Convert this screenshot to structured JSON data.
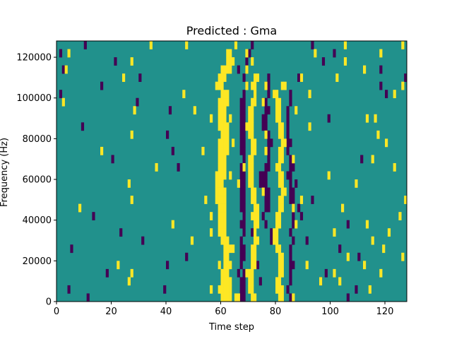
{
  "chart_data": {
    "type": "heatmap",
    "title": "Predicted : Gma",
    "xlabel": "Time step",
    "ylabel": "Frequency (Hz)",
    "xlim": [
      0,
      128
    ],
    "ylim": [
      0,
      128000
    ],
    "x_ticks": [
      0,
      20,
      40,
      60,
      80,
      100,
      120
    ],
    "y_ticks": [
      0,
      20000,
      40000,
      60000,
      80000,
      100000,
      120000
    ],
    "x_tick_labels": [
      "0",
      "20",
      "40",
      "60",
      "80",
      "100",
      "120"
    ],
    "y_tick_labels": [
      "0",
      "20000",
      "40000",
      "60000",
      "80000",
      "100000",
      "120000"
    ],
    "grid": false,
    "colormap": "viridis",
    "colors": {
      "low": "#440154",
      "mid": "#21918c",
      "high": "#fde725"
    },
    "background_value": 0,
    "n_time_steps": 128,
    "n_frequency_bins": 32,
    "hot_cells": [
      [
        60,
        0
      ],
      [
        61,
        0
      ],
      [
        62,
        0
      ],
      [
        63,
        0
      ],
      [
        65,
        0
      ],
      [
        66,
        0
      ],
      [
        71,
        0
      ],
      [
        72,
        0
      ],
      [
        81,
        0
      ],
      [
        82,
        0
      ],
      [
        86,
        0
      ],
      [
        59,
        1
      ],
      [
        60,
        1
      ],
      [
        61,
        1
      ],
      [
        62,
        1
      ],
      [
        63,
        1
      ],
      [
        70,
        1
      ],
      [
        71,
        1
      ],
      [
        80,
        1
      ],
      [
        81,
        1
      ],
      [
        82,
        1
      ],
      [
        56,
        1
      ],
      [
        114,
        1
      ],
      [
        60,
        2
      ],
      [
        61,
        2
      ],
      [
        62,
        2
      ],
      [
        63,
        2
      ],
      [
        70,
        2
      ],
      [
        71,
        2
      ],
      [
        80,
        2
      ],
      [
        81,
        2
      ],
      [
        26,
        2
      ],
      [
        96,
        2
      ],
      [
        103,
        2
      ],
      [
        60,
        3
      ],
      [
        61,
        3
      ],
      [
        62,
        3
      ],
      [
        70,
        3
      ],
      [
        71,
        3
      ],
      [
        81,
        3
      ],
      [
        82,
        3
      ],
      [
        27,
        3
      ],
      [
        69,
        3
      ],
      [
        101,
        3
      ],
      [
        118,
        3
      ],
      [
        61,
        4
      ],
      [
        62,
        4
      ],
      [
        63,
        4
      ],
      [
        71,
        4
      ],
      [
        72,
        4
      ],
      [
        81,
        4
      ],
      [
        82,
        4
      ],
      [
        22,
        4
      ],
      [
        59,
        4
      ],
      [
        91,
        4
      ],
      [
        112,
        4
      ],
      [
        61,
        5
      ],
      [
        62,
        5
      ],
      [
        71,
        5
      ],
      [
        72,
        5
      ],
      [
        81,
        5
      ],
      [
        82,
        5
      ],
      [
        106,
        5
      ],
      [
        126,
        5
      ],
      [
        61,
        6
      ],
      [
        62,
        6
      ],
      [
        63,
        6
      ],
      [
        71,
        6
      ],
      [
        72,
        6
      ],
      [
        80,
        6
      ],
      [
        81,
        6
      ],
      [
        64,
        6
      ],
      [
        119,
        6
      ],
      [
        60,
        7
      ],
      [
        61,
        7
      ],
      [
        62,
        7
      ],
      [
        72,
        7
      ],
      [
        73,
        7
      ],
      [
        79,
        7
      ],
      [
        80,
        7
      ],
      [
        49,
        7
      ],
      [
        115,
        7
      ],
      [
        59,
        8
      ],
      [
        60,
        8
      ],
      [
        61,
        8
      ],
      [
        72,
        8
      ],
      [
        79,
        8
      ],
      [
        80,
        8
      ],
      [
        56,
        8
      ],
      [
        101,
        8
      ],
      [
        121,
        8
      ],
      [
        59,
        9
      ],
      [
        60,
        9
      ],
      [
        61,
        9
      ],
      [
        72,
        9
      ],
      [
        73,
        9
      ],
      [
        80,
        9
      ],
      [
        81,
        9
      ],
      [
        42,
        9
      ],
      [
        87,
        9
      ],
      [
        113,
        9
      ],
      [
        59,
        10
      ],
      [
        60,
        10
      ],
      [
        61,
        10
      ],
      [
        72,
        10
      ],
      [
        73,
        10
      ],
      [
        80,
        10
      ],
      [
        81,
        10
      ],
      [
        56,
        10
      ],
      [
        71,
        10
      ],
      [
        125,
        10
      ],
      [
        59,
        11
      ],
      [
        60,
        11
      ],
      [
        61,
        11
      ],
      [
        72,
        11
      ],
      [
        73,
        11
      ],
      [
        81,
        11
      ],
      [
        82,
        11
      ],
      [
        8,
        11
      ],
      [
        86,
        11
      ],
      [
        104,
        11
      ],
      [
        58,
        12
      ],
      [
        59,
        12
      ],
      [
        60,
        12
      ],
      [
        61,
        12
      ],
      [
        71,
        12
      ],
      [
        72,
        12
      ],
      [
        81,
        12
      ],
      [
        82,
        12
      ],
      [
        27,
        12
      ],
      [
        54,
        12
      ],
      [
        89,
        12
      ],
      [
        127,
        12
      ],
      [
        58,
        13
      ],
      [
        59,
        13
      ],
      [
        60,
        13
      ],
      [
        61,
        13
      ],
      [
        71,
        13
      ],
      [
        72,
        13
      ],
      [
        82,
        13
      ],
      [
        83,
        13
      ],
      [
        75,
        13
      ],
      [
        58,
        14
      ],
      [
        59,
        14
      ],
      [
        60,
        14
      ],
      [
        70,
        14
      ],
      [
        71,
        14
      ],
      [
        81,
        14
      ],
      [
        82,
        14
      ],
      [
        26,
        14
      ],
      [
        66,
        14
      ],
      [
        109,
        14
      ],
      [
        58,
        15
      ],
      [
        59,
        15
      ],
      [
        60,
        15
      ],
      [
        61,
        15
      ],
      [
        70,
        15
      ],
      [
        71,
        15
      ],
      [
        81,
        15
      ],
      [
        82,
        15
      ],
      [
        63,
        15
      ],
      [
        99,
        15
      ],
      [
        59,
        16
      ],
      [
        60,
        16
      ],
      [
        61,
        16
      ],
      [
        70,
        16
      ],
      [
        71,
        16
      ],
      [
        80,
        16
      ],
      [
        81,
        16
      ],
      [
        36,
        16
      ],
      [
        68,
        16
      ],
      [
        123,
        16
      ],
      [
        59,
        17
      ],
      [
        60,
        17
      ],
      [
        61,
        17
      ],
      [
        70,
        17
      ],
      [
        71,
        17
      ],
      [
        81,
        17
      ],
      [
        82,
        17
      ],
      [
        86,
        17
      ],
      [
        115,
        17
      ],
      [
        59,
        18
      ],
      [
        60,
        18
      ],
      [
        61,
        18
      ],
      [
        62,
        18
      ],
      [
        71,
        18
      ],
      [
        72,
        18
      ],
      [
        81,
        18
      ],
      [
        82,
        18
      ],
      [
        16,
        18
      ],
      [
        53,
        18
      ],
      [
        76,
        18
      ],
      [
        59,
        19
      ],
      [
        60,
        19
      ],
      [
        61,
        19
      ],
      [
        62,
        19
      ],
      [
        71,
        19
      ],
      [
        72,
        19
      ],
      [
        82,
        19
      ],
      [
        83,
        19
      ],
      [
        64,
        19
      ],
      [
        120,
        19
      ],
      [
        60,
        20
      ],
      [
        61,
        20
      ],
      [
        62,
        20
      ],
      [
        70,
        20
      ],
      [
        71,
        20
      ],
      [
        81,
        20
      ],
      [
        82,
        20
      ],
      [
        27,
        20
      ],
      [
        76,
        20
      ],
      [
        117,
        20
      ],
      [
        59,
        21
      ],
      [
        60,
        21
      ],
      [
        61,
        21
      ],
      [
        62,
        21
      ],
      [
        70,
        21
      ],
      [
        71,
        21
      ],
      [
        81,
        21
      ],
      [
        82,
        21
      ],
      [
        69,
        21
      ],
      [
        92,
        21
      ],
      [
        59,
        22
      ],
      [
        60,
        22
      ],
      [
        61,
        22
      ],
      [
        63,
        22
      ],
      [
        70,
        22
      ],
      [
        71,
        22
      ],
      [
        80,
        22
      ],
      [
        81,
        22
      ],
      [
        56,
        22
      ],
      [
        116,
        22
      ],
      [
        113,
        22
      ],
      [
        59,
        23
      ],
      [
        60,
        23
      ],
      [
        61,
        23
      ],
      [
        70,
        23
      ],
      [
        71,
        23
      ],
      [
        80,
        23
      ],
      [
        81,
        23
      ],
      [
        28,
        23
      ],
      [
        50,
        23
      ],
      [
        87,
        23
      ],
      [
        60,
        24
      ],
      [
        61,
        24
      ],
      [
        62,
        24
      ],
      [
        71,
        24
      ],
      [
        72,
        24
      ],
      [
        80,
        24
      ],
      [
        81,
        24
      ],
      [
        2,
        24
      ],
      [
        59,
        24
      ],
      [
        75,
        24
      ],
      [
        60,
        25
      ],
      [
        61,
        25
      ],
      [
        62,
        25
      ],
      [
        72,
        25
      ],
      [
        79,
        25
      ],
      [
        80,
        25
      ],
      [
        46,
        25
      ],
      [
        92,
        25
      ],
      [
        123,
        25
      ],
      [
        58,
        26
      ],
      [
        59,
        26
      ],
      [
        60,
        26
      ],
      [
        71,
        26
      ],
      [
        72,
        26
      ],
      [
        82,
        26
      ],
      [
        83,
        26
      ],
      [
        69,
        26
      ],
      [
        126,
        26
      ],
      [
        76,
        26
      ],
      [
        59,
        27
      ],
      [
        60,
        27
      ],
      [
        61,
        27
      ],
      [
        72,
        27
      ],
      [
        73,
        27
      ],
      [
        24,
        27
      ],
      [
        89,
        27
      ],
      [
        102,
        27
      ],
      [
        60,
        28
      ],
      [
        61,
        28
      ],
      [
        62,
        28
      ],
      [
        63,
        28
      ],
      [
        69,
        28
      ],
      [
        112,
        28
      ],
      [
        3,
        28
      ],
      [
        62,
        29
      ],
      [
        63,
        29
      ],
      [
        64,
        29
      ],
      [
        71,
        29
      ],
      [
        27,
        29
      ],
      [
        105,
        29
      ],
      [
        62,
        30
      ],
      [
        63,
        30
      ],
      [
        94,
        30
      ],
      [
        118,
        30
      ],
      [
        4,
        30
      ],
      [
        69,
        30
      ],
      [
        65,
        31
      ],
      [
        105,
        31
      ],
      [
        34,
        31
      ],
      [
        47,
        31
      ],
      [
        126,
        31
      ]
    ],
    "low_cells": [
      [
        67,
        0
      ],
      [
        68,
        0
      ],
      [
        85,
        0
      ],
      [
        11,
        0
      ],
      [
        106,
        0
      ],
      [
        67,
        1
      ],
      [
        68,
        1
      ],
      [
        84,
        1
      ],
      [
        39,
        1
      ],
      [
        109,
        1
      ],
      [
        4,
        1
      ],
      [
        67,
        2
      ],
      [
        85,
        2
      ],
      [
        68,
        2
      ],
      [
        74,
        2
      ],
      [
        96,
        2
      ],
      [
        68,
        3
      ],
      [
        85,
        3
      ],
      [
        66,
        3
      ],
      [
        18,
        3
      ],
      [
        98,
        3
      ],
      [
        67,
        4
      ],
      [
        85,
        4
      ],
      [
        86,
        4
      ],
      [
        73,
        4
      ],
      [
        40,
        4
      ],
      [
        68,
        5
      ],
      [
        85,
        5
      ],
      [
        67,
        5
      ],
      [
        47,
        5
      ],
      [
        110,
        5
      ],
      [
        67,
        6
      ],
      [
        68,
        6
      ],
      [
        85,
        6
      ],
      [
        5,
        6
      ],
      [
        103,
        6
      ],
      [
        67,
        7
      ],
      [
        78,
        7
      ],
      [
        86,
        7
      ],
      [
        91,
        7
      ],
      [
        31,
        7
      ],
      [
        68,
        8
      ],
      [
        78,
        8
      ],
      [
        85,
        8
      ],
      [
        71,
        8
      ],
      [
        23,
        8
      ],
      [
        67,
        9
      ],
      [
        68,
        9
      ],
      [
        76,
        9
      ],
      [
        86,
        9
      ],
      [
        106,
        9
      ],
      [
        68,
        10
      ],
      [
        75,
        10
      ],
      [
        86,
        10
      ],
      [
        89,
        10
      ],
      [
        13,
        10
      ],
      [
        67,
        11
      ],
      [
        68,
        11
      ],
      [
        76,
        11
      ],
      [
        77,
        11
      ],
      [
        86,
        11
      ],
      [
        88,
        11
      ],
      [
        67,
        12
      ],
      [
        68,
        12
      ],
      [
        76,
        12
      ],
      [
        77,
        12
      ],
      [
        85,
        12
      ],
      [
        86,
        12
      ],
      [
        93,
        12
      ],
      [
        67,
        13
      ],
      [
        68,
        13
      ],
      [
        75,
        13
      ],
      [
        76,
        13
      ],
      [
        77,
        13
      ],
      [
        85,
        13
      ],
      [
        86,
        13
      ],
      [
        67,
        14
      ],
      [
        68,
        14
      ],
      [
        74,
        14
      ],
      [
        75,
        14
      ],
      [
        76,
        14
      ],
      [
        85,
        14
      ],
      [
        87,
        14
      ],
      [
        67,
        15
      ],
      [
        68,
        15
      ],
      [
        74,
        15
      ],
      [
        75,
        15
      ],
      [
        76,
        15
      ],
      [
        84,
        15
      ],
      [
        85,
        15
      ],
      [
        67,
        16
      ],
      [
        68,
        16
      ],
      [
        76,
        16
      ],
      [
        77,
        16
      ],
      [
        85,
        16
      ],
      [
        86,
        16
      ],
      [
        44,
        16
      ],
      [
        68,
        17
      ],
      [
        77,
        17
      ],
      [
        85,
        17
      ],
      [
        111,
        17
      ],
      [
        20,
        17
      ],
      [
        67,
        18
      ],
      [
        68,
        18
      ],
      [
        77,
        18
      ],
      [
        84,
        18
      ],
      [
        42,
        18
      ],
      [
        67,
        19
      ],
      [
        68,
        19
      ],
      [
        77,
        19
      ],
      [
        78,
        19
      ],
      [
        84,
        19
      ],
      [
        85,
        19
      ],
      [
        67,
        20
      ],
      [
        68,
        20
      ],
      [
        76,
        20
      ],
      [
        77,
        20
      ],
      [
        84,
        20
      ],
      [
        40,
        20
      ],
      [
        67,
        21
      ],
      [
        68,
        21
      ],
      [
        75,
        21
      ],
      [
        76,
        21
      ],
      [
        84,
        21
      ],
      [
        9,
        21
      ],
      [
        67,
        22
      ],
      [
        68,
        22
      ],
      [
        75,
        22
      ],
      [
        76,
        22
      ],
      [
        84,
        22
      ],
      [
        99,
        22
      ],
      [
        67,
        23
      ],
      [
        68,
        23
      ],
      [
        76,
        23
      ],
      [
        77,
        23
      ],
      [
        84,
        23
      ],
      [
        41,
        23
      ],
      [
        67,
        24
      ],
      [
        68,
        24
      ],
      [
        75,
        24
      ],
      [
        76,
        24
      ],
      [
        85,
        24
      ],
      [
        29,
        24
      ],
      [
        68,
        25
      ],
      [
        77,
        25
      ],
      [
        85,
        25
      ],
      [
        120,
        25
      ],
      [
        1,
        25
      ],
      [
        69,
        26
      ],
      [
        77,
        26
      ],
      [
        76,
        26
      ],
      [
        16,
        26
      ],
      [
        118,
        26
      ],
      [
        68,
        27
      ],
      [
        77,
        27
      ],
      [
        30,
        27
      ],
      [
        88,
        27
      ],
      [
        127,
        27
      ],
      [
        66,
        28
      ],
      [
        69,
        28
      ],
      [
        118,
        28
      ],
      [
        2,
        28
      ],
      [
        69,
        29
      ],
      [
        21,
        29
      ],
      [
        97,
        29
      ],
      [
        70,
        30
      ],
      [
        101,
        30
      ],
      [
        1,
        30
      ],
      [
        10,
        31
      ],
      [
        71,
        31
      ],
      [
        93,
        31
      ]
    ]
  }
}
